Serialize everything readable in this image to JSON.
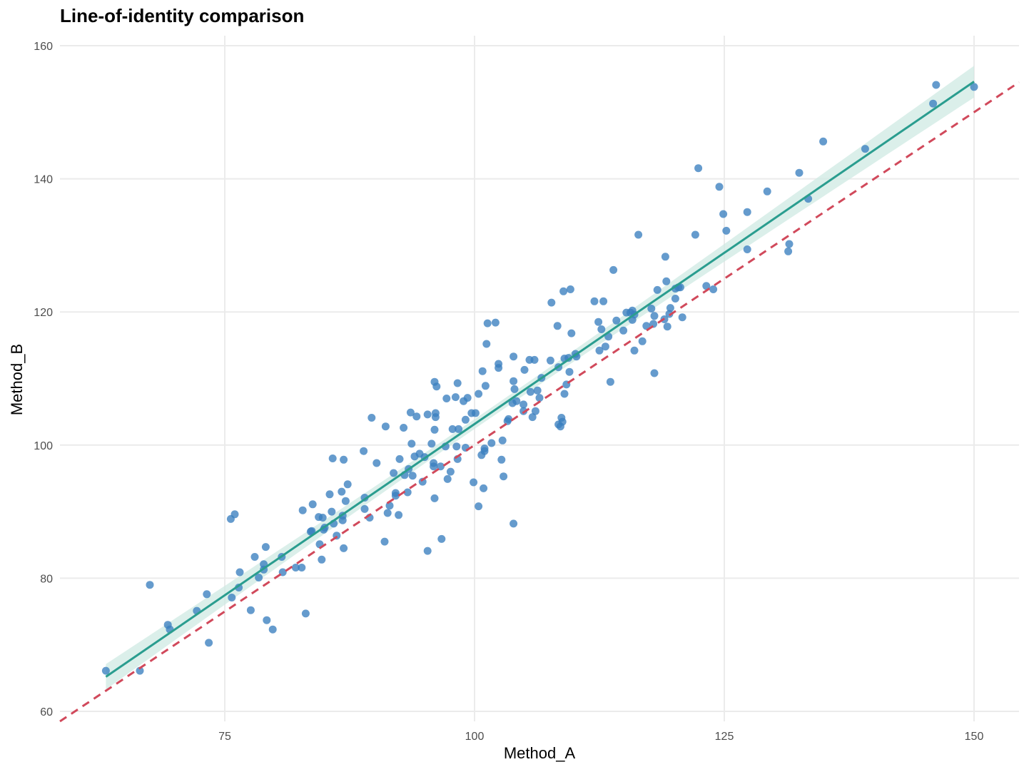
{
  "chart_data": {
    "type": "scatter",
    "title": "Line-of-identity comparison",
    "xlabel": "Method_A",
    "ylabel": "Method_B",
    "xlim": [
      58.5,
      154.5
    ],
    "ylim": [
      58.5,
      161.5
    ],
    "x_ticks": [
      75,
      100,
      125,
      150
    ],
    "y_ticks": [
      60,
      80,
      100,
      120,
      140,
      160
    ],
    "grid": true,
    "colors": {
      "points": "#3a7fbf",
      "fit_line": "#2a9d8f",
      "confidence_band": "#cfe9e3",
      "identity_line": "#d1495b",
      "grid": "#ebebeb"
    },
    "identity_line": {
      "slope": 1,
      "intercept": 0,
      "style": "dashed"
    },
    "fit_line": {
      "x_start": 63.1,
      "y_start": 65.2,
      "x_end": 150.0,
      "y_end": 154.6,
      "style": "solid",
      "confidence_band": true
    },
    "points": [
      [
        63.1,
        66.1
      ],
      [
        66.5,
        66.1
      ],
      [
        67.5,
        79.0
      ],
      [
        69.3,
        73.0
      ],
      [
        69.5,
        72.3
      ],
      [
        72.2,
        75.1
      ],
      [
        73.2,
        77.6
      ],
      [
        73.4,
        70.3
      ],
      [
        75.6,
        88.9
      ],
      [
        75.7,
        77.1
      ],
      [
        76.0,
        89.6
      ],
      [
        76.4,
        78.6
      ],
      [
        76.5,
        80.9
      ],
      [
        77.6,
        75.2
      ],
      [
        78.0,
        83.2
      ],
      [
        78.4,
        80.1
      ],
      [
        78.9,
        82.1
      ],
      [
        78.9,
        81.3
      ],
      [
        79.1,
        84.7
      ],
      [
        79.2,
        73.7
      ],
      [
        79.8,
        72.3
      ],
      [
        80.7,
        83.2
      ],
      [
        80.8,
        80.9
      ],
      [
        82.1,
        81.6
      ],
      [
        82.7,
        81.6
      ],
      [
        82.8,
        90.2
      ],
      [
        83.1,
        74.7
      ],
      [
        83.6,
        87.0
      ],
      [
        83.7,
        87.1
      ],
      [
        83.8,
        91.1
      ],
      [
        84.4,
        89.2
      ],
      [
        84.5,
        85.1
      ],
      [
        84.7,
        82.8
      ],
      [
        84.8,
        89.1
      ],
      [
        84.9,
        87.3
      ],
      [
        85.0,
        87.6
      ],
      [
        85.5,
        92.6
      ],
      [
        85.7,
        90.0
      ],
      [
        85.8,
        98.0
      ],
      [
        85.9,
        88.2
      ],
      [
        86.2,
        86.4
      ],
      [
        86.7,
        93.0
      ],
      [
        86.8,
        89.4
      ],
      [
        86.8,
        88.7
      ],
      [
        86.9,
        84.5
      ],
      [
        86.9,
        97.8
      ],
      [
        87.1,
        91.6
      ],
      [
        87.3,
        94.1
      ],
      [
        88.9,
        99.1
      ],
      [
        89.0,
        90.4
      ],
      [
        89.0,
        92.1
      ],
      [
        89.5,
        89.1
      ],
      [
        89.7,
        104.1
      ],
      [
        90.2,
        97.3
      ],
      [
        91.0,
        85.5
      ],
      [
        91.1,
        102.8
      ],
      [
        91.3,
        89.8
      ],
      [
        91.5,
        90.9
      ],
      [
        91.9,
        95.8
      ],
      [
        92.1,
        92.8
      ],
      [
        92.1,
        92.4
      ],
      [
        92.4,
        89.5
      ],
      [
        92.5,
        97.9
      ],
      [
        92.9,
        102.6
      ],
      [
        93.0,
        95.5
      ],
      [
        93.3,
        92.9
      ],
      [
        93.4,
        96.4
      ],
      [
        93.6,
        104.9
      ],
      [
        93.7,
        100.2
      ],
      [
        93.8,
        95.4
      ],
      [
        94.0,
        98.3
      ],
      [
        94.2,
        104.3
      ],
      [
        94.5,
        98.7
      ],
      [
        94.8,
        94.5
      ],
      [
        95.0,
        98.2
      ],
      [
        95.3,
        84.1
      ],
      [
        95.3,
        104.6
      ],
      [
        95.7,
        100.2
      ],
      [
        95.9,
        96.8
      ],
      [
        95.9,
        97.3
      ],
      [
        96.0,
        109.5
      ],
      [
        96.0,
        92.0
      ],
      [
        96.0,
        102.3
      ],
      [
        96.1,
        104.8
      ],
      [
        96.1,
        104.2
      ],
      [
        96.2,
        108.8
      ],
      [
        96.6,
        96.8
      ],
      [
        96.7,
        85.9
      ],
      [
        97.1,
        99.8
      ],
      [
        97.2,
        107.0
      ],
      [
        97.3,
        94.9
      ],
      [
        97.6,
        96.0
      ],
      [
        97.8,
        102.4
      ],
      [
        98.1,
        107.2
      ],
      [
        98.2,
        99.8
      ],
      [
        98.3,
        109.3
      ],
      [
        98.3,
        97.9
      ],
      [
        98.4,
        102.4
      ],
      [
        98.9,
        106.6
      ],
      [
        99.1,
        103.8
      ],
      [
        99.1,
        99.6
      ],
      [
        99.3,
        107.1
      ],
      [
        99.7,
        104.8
      ],
      [
        99.9,
        94.4
      ],
      [
        100.1,
        104.8
      ],
      [
        100.4,
        107.7
      ],
      [
        100.4,
        90.8
      ],
      [
        100.7,
        98.5
      ],
      [
        100.8,
        111.1
      ],
      [
        100.9,
        93.5
      ],
      [
        101.0,
        99.5
      ],
      [
        101.0,
        99.1
      ],
      [
        101.1,
        108.9
      ],
      [
        101.2,
        115.2
      ],
      [
        101.3,
        118.3
      ],
      [
        101.7,
        100.3
      ],
      [
        102.1,
        118.4
      ],
      [
        102.4,
        112.2
      ],
      [
        102.4,
        111.6
      ],
      [
        102.7,
        97.8
      ],
      [
        102.8,
        100.7
      ],
      [
        102.9,
        95.3
      ],
      [
        103.3,
        103.6
      ],
      [
        103.4,
        103.9
      ],
      [
        103.8,
        106.3
      ],
      [
        103.9,
        88.2
      ],
      [
        103.9,
        113.3
      ],
      [
        103.9,
        109.6
      ],
      [
        104.0,
        108.4
      ],
      [
        104.2,
        106.6
      ],
      [
        104.9,
        105.1
      ],
      [
        104.9,
        106.1
      ],
      [
        105.0,
        111.3
      ],
      [
        105.5,
        112.8
      ],
      [
        105.6,
        108.0
      ],
      [
        105.8,
        104.2
      ],
      [
        106.0,
        112.8
      ],
      [
        106.1,
        105.1
      ],
      [
        106.3,
        108.2
      ],
      [
        106.5,
        107.1
      ],
      [
        106.7,
        110.1
      ],
      [
        107.6,
        112.7
      ],
      [
        107.7,
        121.4
      ],
      [
        108.3,
        117.9
      ],
      [
        108.4,
        103.1
      ],
      [
        108.4,
        111.7
      ],
      [
        108.6,
        102.8
      ],
      [
        108.7,
        104.1
      ],
      [
        108.8,
        103.5
      ],
      [
        108.9,
        123.1
      ],
      [
        109.0,
        107.7
      ],
      [
        109.0,
        113.0
      ],
      [
        109.2,
        109.1
      ],
      [
        109.4,
        113.1
      ],
      [
        109.5,
        111.0
      ],
      [
        109.6,
        123.4
      ],
      [
        109.7,
        116.8
      ],
      [
        110.1,
        113.7
      ],
      [
        110.2,
        113.3
      ],
      [
        112.0,
        121.6
      ],
      [
        112.4,
        118.5
      ],
      [
        112.5,
        114.2
      ],
      [
        112.7,
        117.4
      ],
      [
        112.9,
        121.6
      ],
      [
        113.1,
        114.8
      ],
      [
        113.4,
        116.3
      ],
      [
        113.6,
        109.5
      ],
      [
        113.9,
        126.3
      ],
      [
        114.2,
        118.7
      ],
      [
        114.9,
        117.2
      ],
      [
        115.2,
        119.9
      ],
      [
        115.6,
        119.9
      ],
      [
        115.8,
        120.2
      ],
      [
        115.8,
        118.8
      ],
      [
        116.0,
        119.6
      ],
      [
        116.0,
        114.2
      ],
      [
        116.4,
        131.6
      ],
      [
        116.8,
        115.6
      ],
      [
        117.2,
        117.9
      ],
      [
        117.7,
        120.5
      ],
      [
        117.9,
        118.2
      ],
      [
        118.0,
        110.8
      ],
      [
        118.0,
        119.4
      ],
      [
        118.3,
        123.3
      ],
      [
        119.0,
        118.9
      ],
      [
        119.1,
        128.3
      ],
      [
        119.2,
        124.6
      ],
      [
        119.3,
        117.8
      ],
      [
        119.5,
        119.7
      ],
      [
        119.6,
        120.6
      ],
      [
        120.1,
        123.5
      ],
      [
        120.1,
        122.0
      ],
      [
        120.4,
        123.7
      ],
      [
        120.6,
        123.7
      ],
      [
        120.8,
        119.2
      ],
      [
        122.1,
        131.6
      ],
      [
        122.4,
        141.6
      ],
      [
        123.2,
        123.9
      ],
      [
        123.9,
        123.4
      ],
      [
        124.5,
        138.8
      ],
      [
        124.9,
        134.7
      ],
      [
        125.2,
        132.2
      ],
      [
        127.3,
        135.0
      ],
      [
        127.3,
        129.4
      ],
      [
        129.3,
        138.1
      ],
      [
        131.4,
        129.1
      ],
      [
        131.5,
        130.2
      ],
      [
        132.5,
        140.9
      ],
      [
        133.4,
        137.0
      ],
      [
        134.9,
        145.6
      ],
      [
        139.1,
        144.5
      ],
      [
        145.9,
        151.3
      ],
      [
        146.2,
        154.1
      ],
      [
        150.0,
        153.8
      ]
    ]
  }
}
